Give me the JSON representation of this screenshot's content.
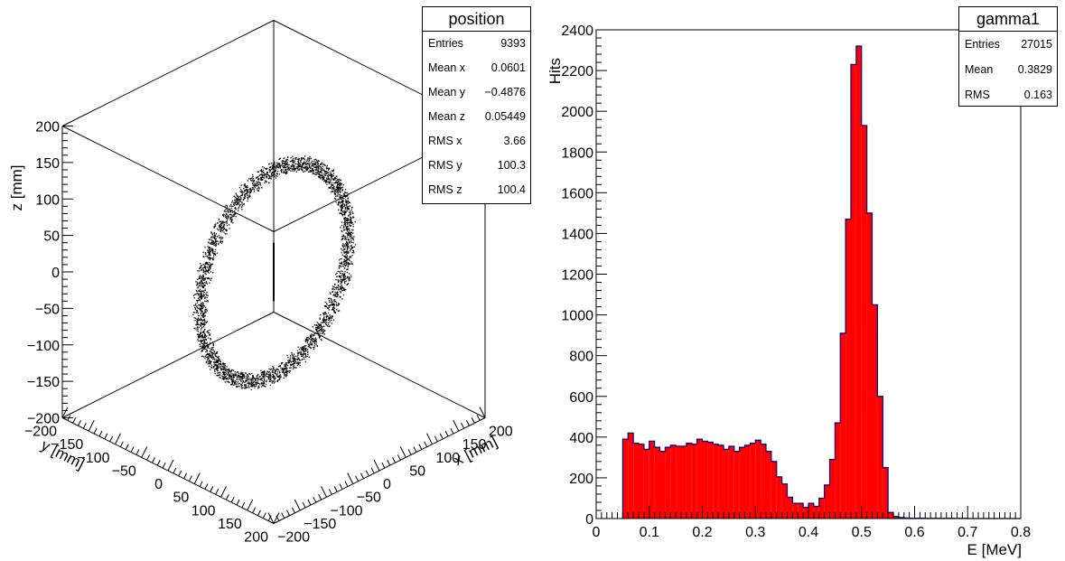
{
  "position_panel": {
    "stats": {
      "title": "position",
      "rows": [
        {
          "key": "Entries",
          "value": "9393"
        },
        {
          "key": "Mean x",
          "value": "0.0601"
        },
        {
          "key": "Mean y",
          "value": "−0.4876"
        },
        {
          "key": "Mean z",
          "value": "0.05449"
        },
        {
          "key": "RMS x",
          "value": "3.66"
        },
        {
          "key": "RMS y",
          "value": "100.3"
        },
        {
          "key": "RMS z",
          "value": "100.4"
        }
      ]
    },
    "z_label": "z [mm]",
    "y_label": "y [mm]",
    "x_label": "x [mm]"
  },
  "gamma1_panel": {
    "stats": {
      "title": "gamma1",
      "rows": [
        {
          "key": "Entries",
          "value": "27015"
        },
        {
          "key": "Mean",
          "value": "0.3829"
        },
        {
          "key": "RMS",
          "value": "0.163"
        }
      ]
    },
    "ylabel": "Hits",
    "xlabel": "E [MeV]"
  },
  "colors": {
    "fill": "#ff0000",
    "outline": "#00007f",
    "frame": "#000000"
  },
  "chart_data": [
    {
      "type": "scatter",
      "name": "position",
      "title": "",
      "xlabel": "x [mm]",
      "ylabel": "y [mm]",
      "zlabel": "z [mm]",
      "xlim": [
        -200,
        200
      ],
      "ylim": [
        -200,
        200
      ],
      "zlim": [
        -200,
        200
      ],
      "x_ticks": [
        "−200",
        "−150",
        "−100",
        "−50",
        "0",
        "50",
        "100",
        "150",
        "200"
      ],
      "y_ticks": [
        "−200",
        "−150",
        "−100",
        "−50",
        "0",
        "50",
        "100",
        "150",
        "200"
      ],
      "z_ticks": [
        "−200",
        "−150",
        "−100",
        "−50",
        "0",
        "50",
        "100",
        "150",
        "200"
      ],
      "ring": {
        "radius": 140,
        "plane": "y-z",
        "x_center": 0,
        "n_clusters": 48
      }
    },
    {
      "type": "bar",
      "name": "gamma1",
      "title": "",
      "xlabel": "E [MeV]",
      "ylabel": "Hits",
      "xlim": [
        0,
        0.8
      ],
      "ylim": [
        0,
        2400
      ],
      "bin_width": 0.01,
      "x_ticks": [
        "0",
        "0.1",
        "0.2",
        "0.3",
        "0.4",
        "0.5",
        "0.6",
        "0.7",
        "0.8"
      ],
      "y_ticks": [
        "0",
        "200",
        "400",
        "600",
        "800",
        "1000",
        "1200",
        "1400",
        "1600",
        "1800",
        "2000",
        "2200",
        "2400"
      ],
      "bin_low_edges": [
        0.05,
        0.06,
        0.07,
        0.08,
        0.09,
        0.1,
        0.11,
        0.12,
        0.13,
        0.14,
        0.15,
        0.16,
        0.17,
        0.18,
        0.19,
        0.2,
        0.21,
        0.22,
        0.23,
        0.24,
        0.25,
        0.26,
        0.27,
        0.28,
        0.29,
        0.3,
        0.31,
        0.32,
        0.33,
        0.34,
        0.35,
        0.36,
        0.37,
        0.38,
        0.39,
        0.4,
        0.41,
        0.42,
        0.43,
        0.44,
        0.45,
        0.46,
        0.47,
        0.48,
        0.49,
        0.5,
        0.51,
        0.52,
        0.53,
        0.54,
        0.55,
        0.56,
        0.57,
        0.58,
        0.59,
        0.6,
        0.61,
        0.62,
        0.63,
        0.64,
        0.65,
        0.66,
        0.67,
        0.68,
        0.69,
        0.7,
        0.71,
        0.72,
        0.73,
        0.74,
        0.75,
        0.76,
        0.77,
        0.78,
        0.79
      ],
      "values": [
        390,
        420,
        370,
        365,
        340,
        380,
        350,
        330,
        350,
        360,
        355,
        355,
        370,
        365,
        390,
        380,
        375,
        365,
        360,
        340,
        355,
        330,
        350,
        360,
        370,
        385,
        365,
        330,
        280,
        205,
        170,
        105,
        75,
        75,
        55,
        75,
        60,
        100,
        165,
        290,
        470,
        910,
        1470,
        2230,
        2320,
        1930,
        1500,
        1050,
        600,
        250,
        30,
        10,
        5,
        3,
        2,
        2,
        2,
        1,
        1,
        1,
        1,
        1,
        1,
        1,
        1,
        0,
        0,
        0,
        0,
        0,
        0,
        0,
        0,
        0,
        0
      ]
    }
  ]
}
